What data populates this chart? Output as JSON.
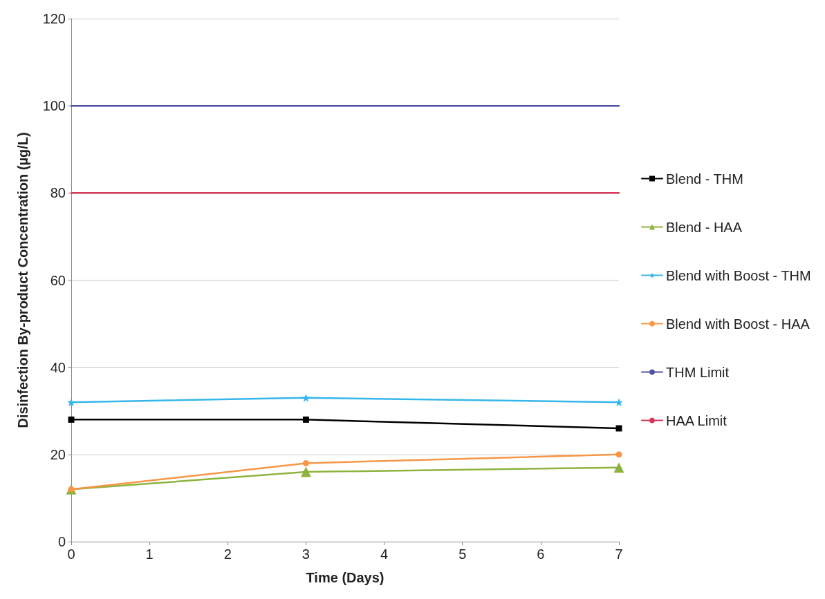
{
  "chart_data": {
    "type": "line",
    "xlabel": "Time (Days)",
    "ylabel": "Disinfection By-product Concentration (µg/L)",
    "x": [
      0,
      3,
      7
    ],
    "series": [
      {
        "name": "Blend - THM",
        "color": "#000000",
        "marker": "square",
        "values": [
          28,
          28,
          26
        ]
      },
      {
        "name": "Blend - HAA",
        "color": "#8db33f",
        "marker": "triangle",
        "values": [
          12,
          16,
          17
        ]
      },
      {
        "name": "Blend with Boost - THM",
        "color": "#35b6ea",
        "marker": "star",
        "values": [
          32,
          33,
          32
        ]
      },
      {
        "name": "Blend with Boost - HAA",
        "color": "#f79646",
        "marker": "circle",
        "values": [
          12,
          18,
          20
        ]
      },
      {
        "name": "THM Limit",
        "color": "#5151a3",
        "marker": "none",
        "values": [
          100,
          100,
          100
        ]
      },
      {
        "name": "HAA Limit",
        "color": "#d3385a",
        "marker": "none",
        "values": [
          80,
          80,
          80
        ]
      }
    ],
    "xlim": [
      0,
      7
    ],
    "xticks": [
      0,
      1,
      2,
      3,
      4,
      5,
      6,
      7
    ],
    "ylim": [
      0,
      120
    ],
    "yticks": [
      0,
      20,
      40,
      60,
      80,
      100,
      120
    ],
    "grid": "y",
    "legend": "right"
  }
}
